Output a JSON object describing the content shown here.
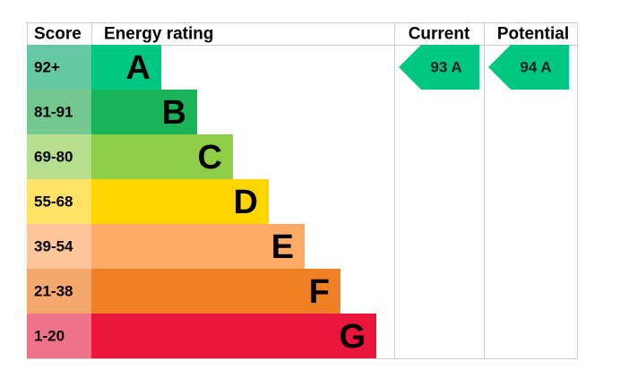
{
  "header": {
    "score": "Score",
    "rating": "Energy rating",
    "current": "Current",
    "potential": "Potential"
  },
  "bands": [
    {
      "score": "92+",
      "letter": "A",
      "color": "#00c781",
      "score_color": "#66c9a3"
    },
    {
      "score": "81-91",
      "letter": "B",
      "color": "#19b459",
      "score_color": "#72c88e"
    },
    {
      "score": "69-80",
      "letter": "C",
      "color": "#8dce46",
      "score_color": "#b7de8d"
    },
    {
      "score": "55-68",
      "letter": "D",
      "color": "#ffd500",
      "score_color": "#ffe264"
    },
    {
      "score": "39-54",
      "letter": "E",
      "color": "#fcaa65",
      "score_color": "#fcc69a"
    },
    {
      "score": "21-38",
      "letter": "F",
      "color": "#ef8023",
      "score_color": "#f4a86b"
    },
    {
      "score": "1-20",
      "letter": "G",
      "color": "#e9153b",
      "score_color": "#f07489"
    }
  ],
  "current": {
    "label": "93 A",
    "color": "#00c781"
  },
  "potential": {
    "label": "94 A",
    "color": "#00c781"
  }
}
